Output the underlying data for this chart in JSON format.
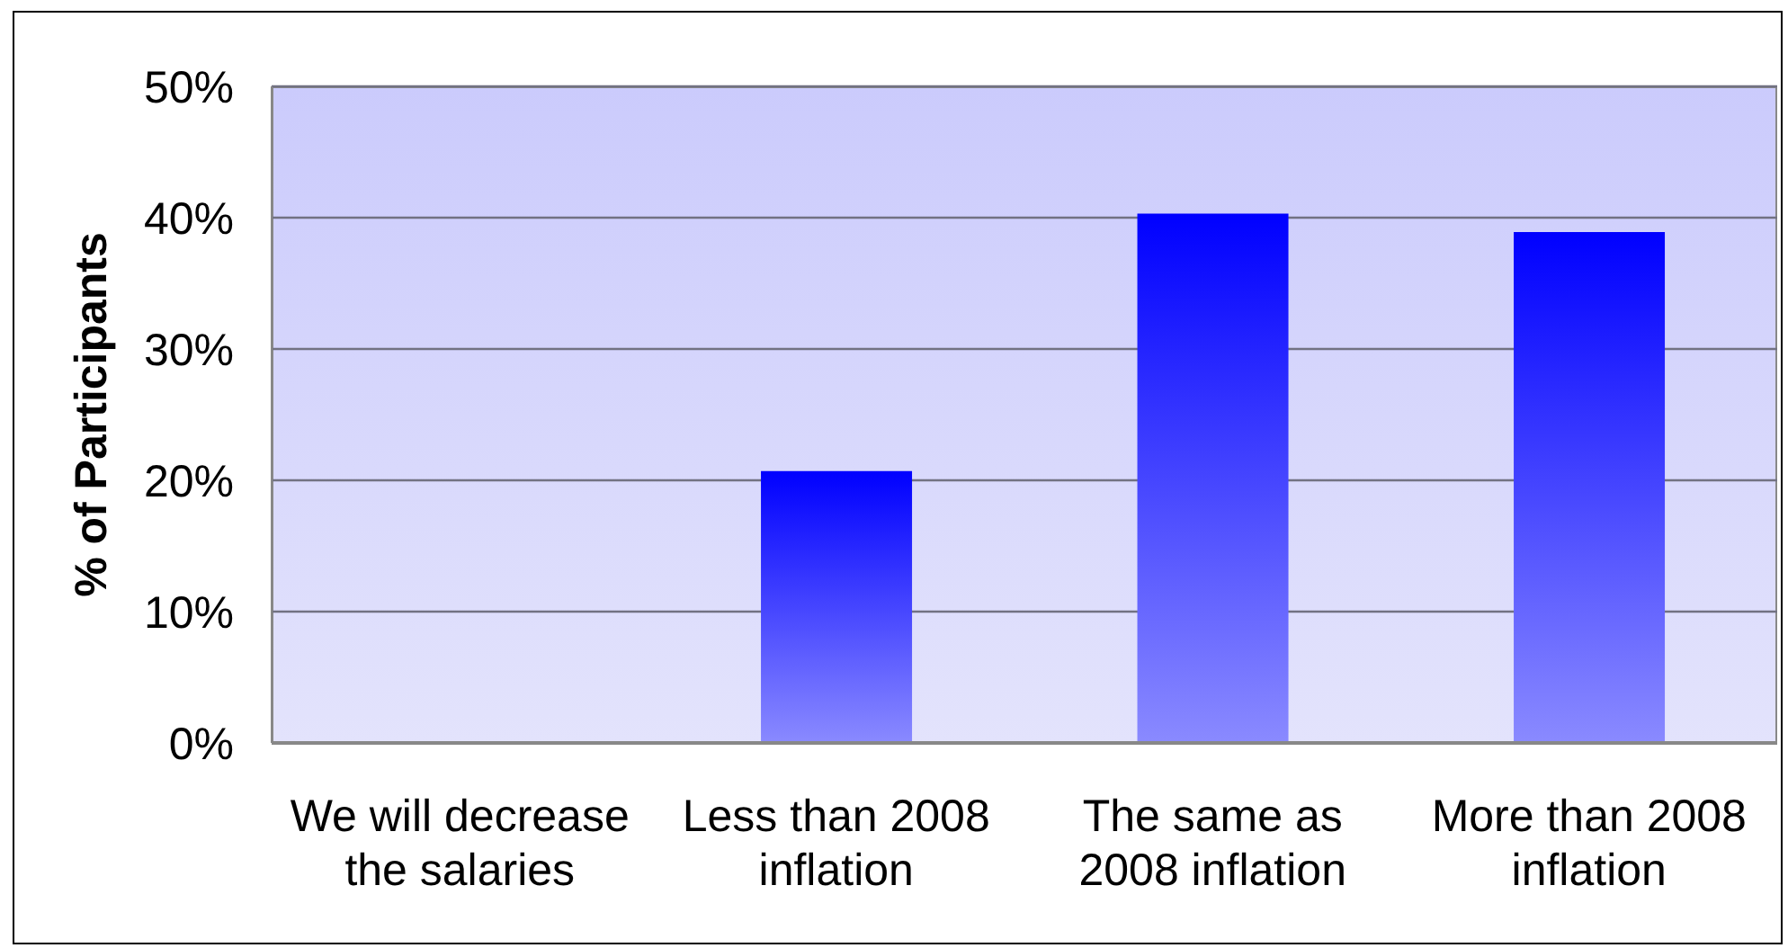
{
  "chart_data": {
    "type": "bar",
    "ylabel": "% of Participants",
    "categories": [
      "We will decrease the salaries",
      "Less than 2008 inflation",
      "The same as 2008 inflation",
      "More than 2008 inflation"
    ],
    "values": [
      0,
      20.7,
      40.3,
      38.9
    ],
    "color": "#0000ff",
    "ylim": [
      0,
      50
    ],
    "yticks": [
      {
        "value": 0,
        "label": "0%"
      },
      {
        "value": 10,
        "label": "10%"
      },
      {
        "value": 20,
        "label": "20%"
      },
      {
        "value": 30,
        "label": "30%"
      },
      {
        "value": 40,
        "label": "40%"
      },
      {
        "value": 50,
        "label": "50%"
      }
    ],
    "grid": "y"
  }
}
